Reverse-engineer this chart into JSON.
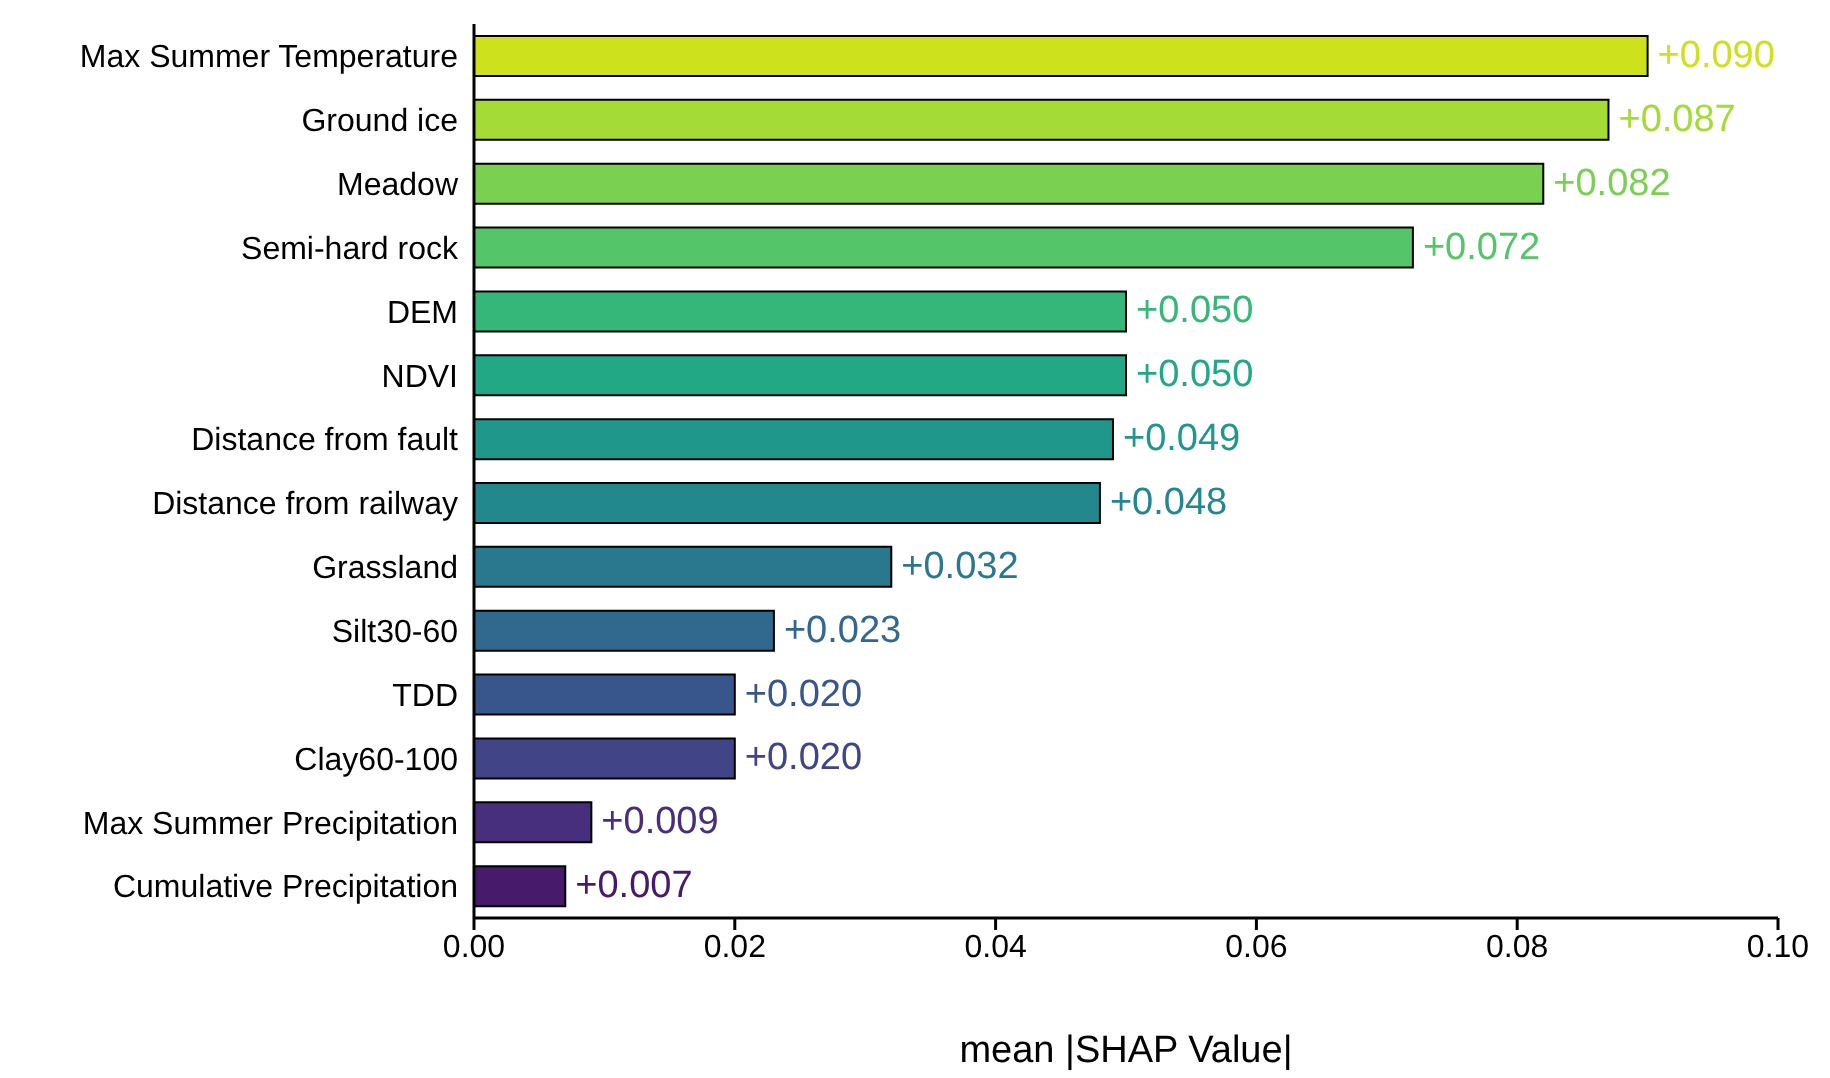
{
  "chart_data": {
    "type": "bar",
    "orientation": "horizontal",
    "xlabel": "mean |SHAP Value|",
    "categories": [
      "Max Summer Temperature",
      "Ground ice",
      "Meadow",
      "Semi-hard rock",
      "DEM",
      "NDVI",
      "Distance from fault",
      "Distance from railway",
      "Grassland",
      "Silt30-60",
      "TDD",
      "Clay60-100",
      "Max Summer Precipitation",
      "Cumulative Precipitation"
    ],
    "values": [
      0.09,
      0.087,
      0.082,
      0.072,
      0.05,
      0.05,
      0.049,
      0.048,
      0.032,
      0.023,
      0.02,
      0.02,
      0.009,
      0.007
    ],
    "value_labels": [
      "+0.090",
      "+0.087",
      "+0.082",
      "+0.072",
      "+0.050",
      "+0.050",
      "+0.049",
      "+0.048",
      "+0.032",
      "+0.023",
      "+0.020",
      "+0.020",
      "+0.009",
      "+0.007"
    ],
    "colors": [
      "#cde11d",
      "#a5db36",
      "#7ad151",
      "#54c568",
      "#35b779",
      "#22a884",
      "#1f988b",
      "#23888e",
      "#2a788e",
      "#31688e",
      "#39568c",
      "#414487",
      "#472f7d",
      "#481a6c"
    ],
    "xlim": [
      0,
      0.1
    ],
    "xticks": [
      {
        "value": 0,
        "label": "0.00"
      },
      {
        "value": 0.02,
        "label": "0.02"
      },
      {
        "value": 0.04,
        "label": "0.04"
      },
      {
        "value": 0.06,
        "label": "0.06"
      },
      {
        "value": 0.08,
        "label": "0.08"
      },
      {
        "value": 0.1,
        "label": "0.10"
      }
    ],
    "grid": false,
    "legend": false
  }
}
